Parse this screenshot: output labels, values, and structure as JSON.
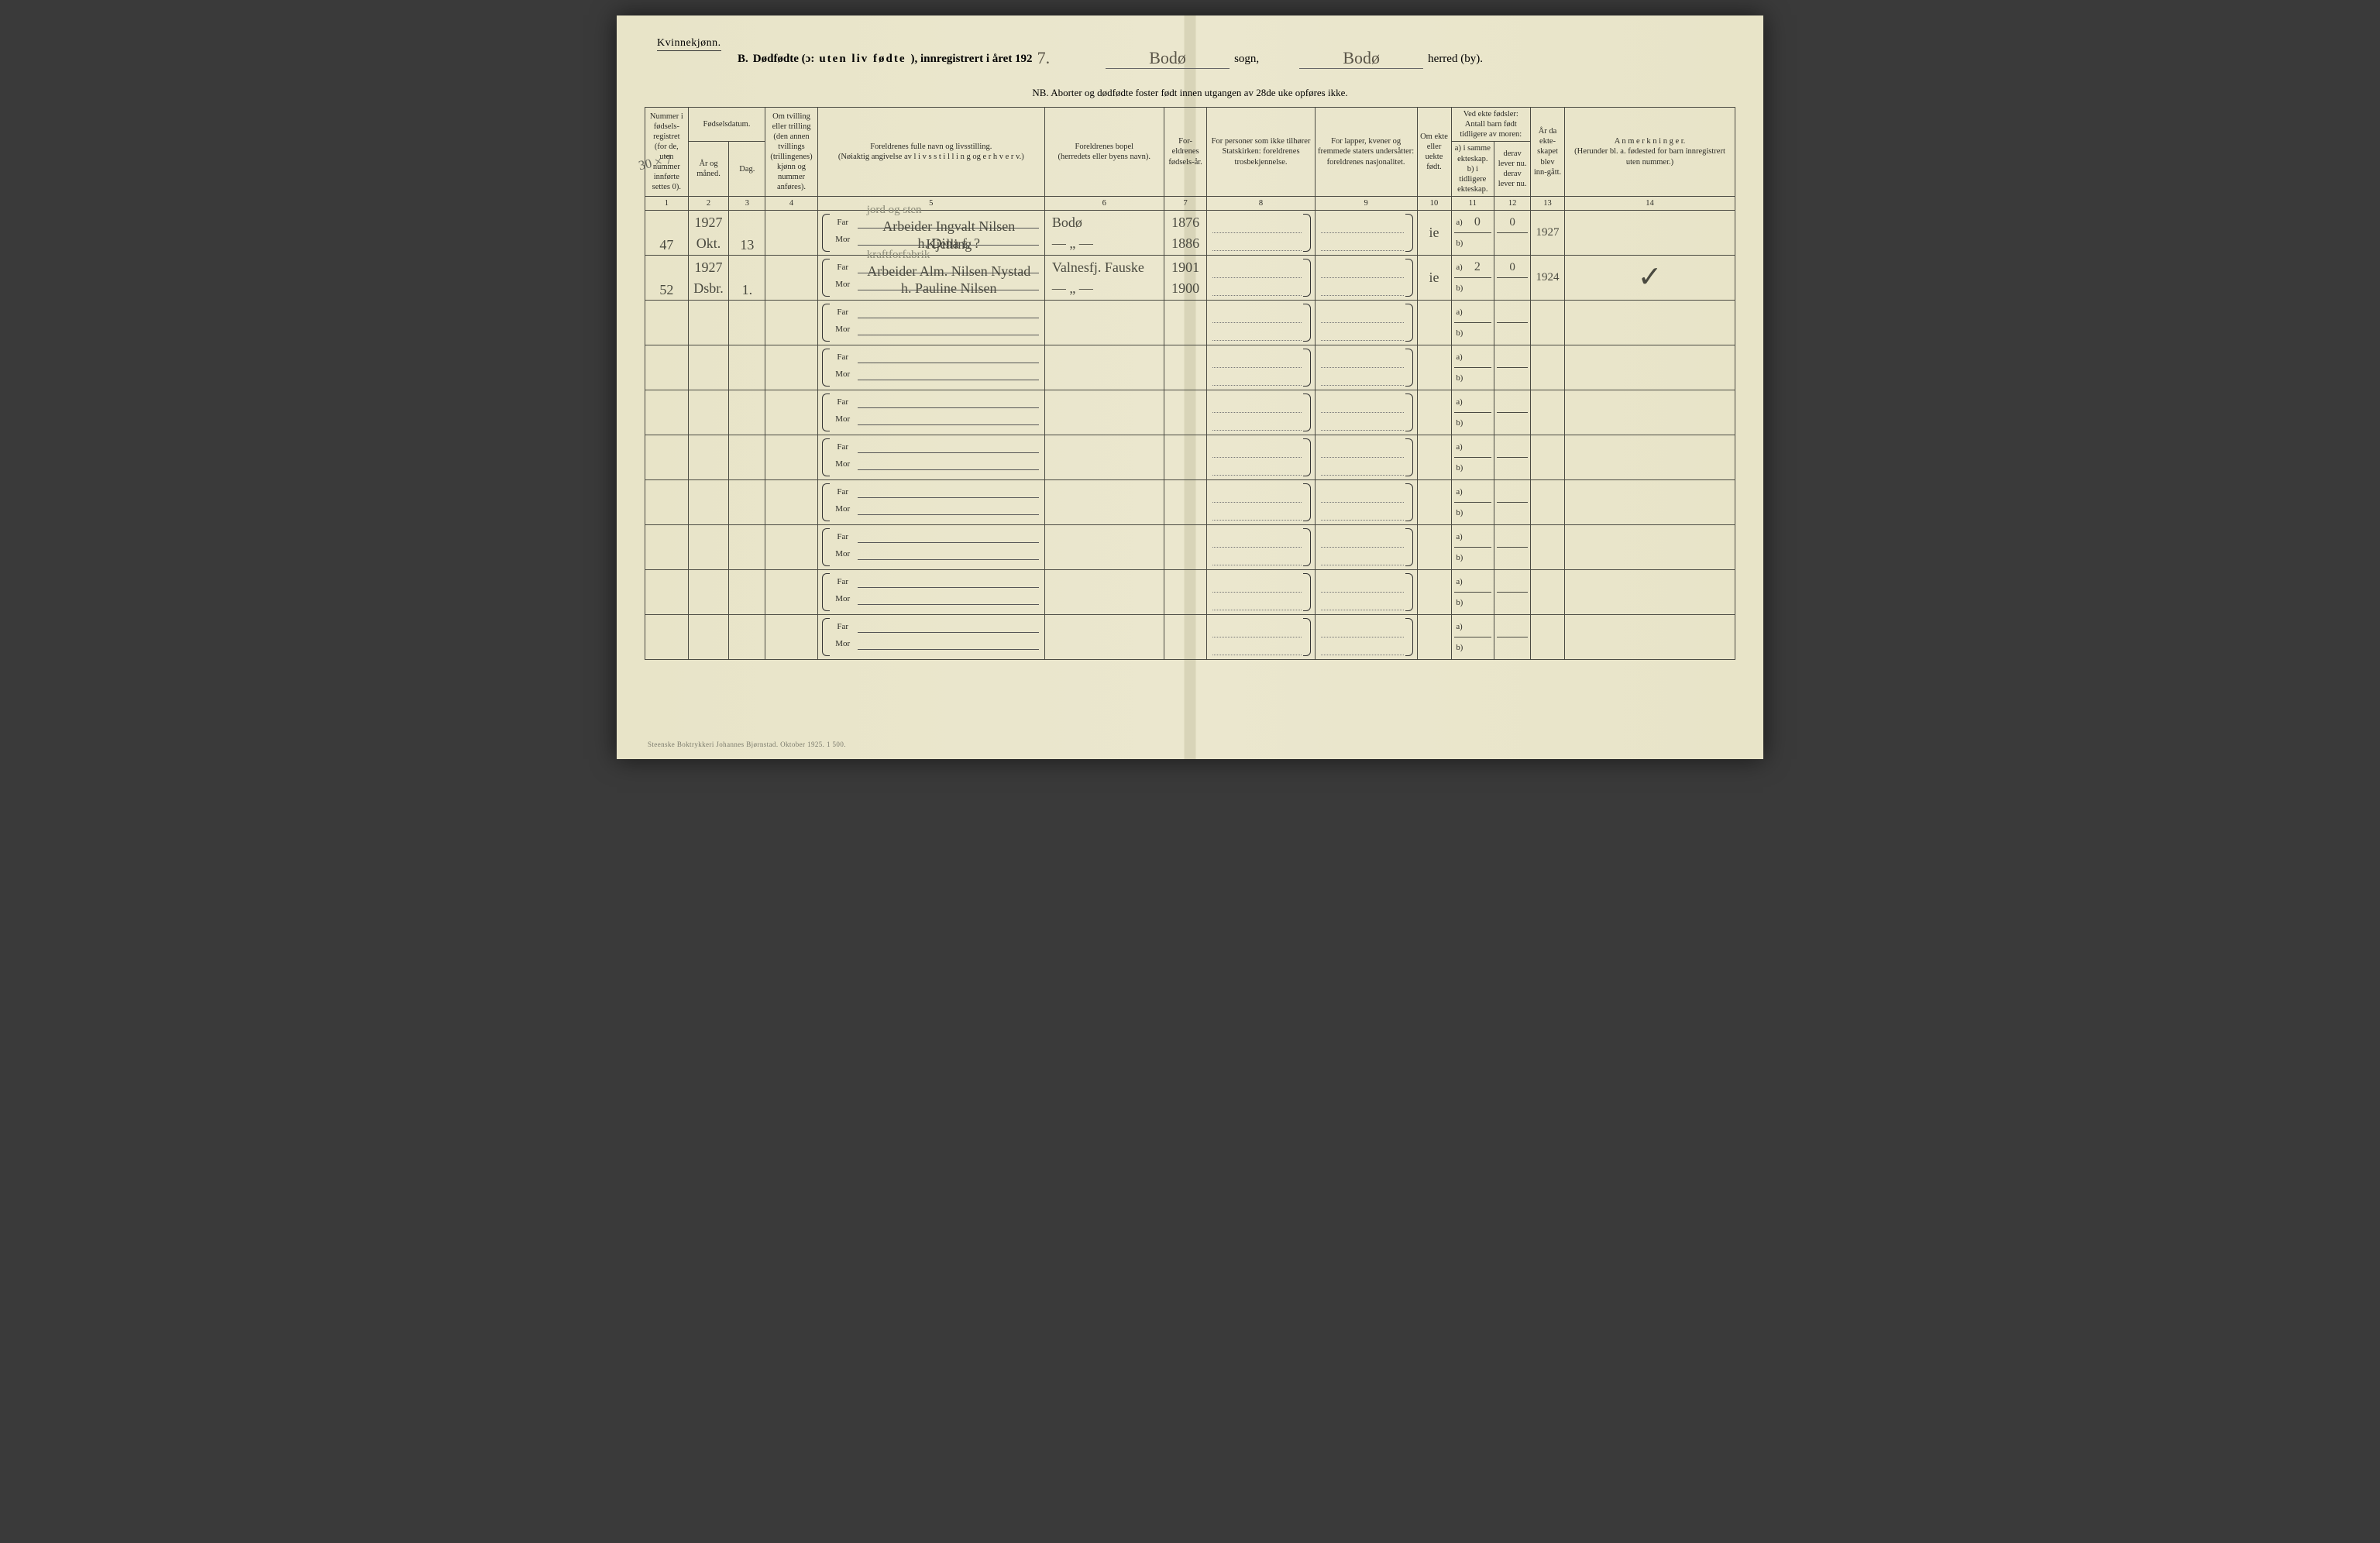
{
  "header": {
    "gender": "Kvinnekjønn.",
    "title_b": "B.",
    "title_main": "Dødfødte (ɔ:",
    "title_spaced": "uten liv fødte",
    "title_tail": "), innregistrert i året 192",
    "year_digit": "7.",
    "sogn_value": "Bodø",
    "sogn_label": "sogn,",
    "herred_value": "Bodø",
    "herred_label": "herred (by).",
    "nb": "NB.  Aborter og dødfødte foster født innen utgangen av 28de uke opføres ikke."
  },
  "columns": {
    "c1": "Nummer i fødsels-registret (for de, uten nummer innførte settes 0).",
    "c23_top": "Fødselsdatum.",
    "c2": "År og måned.",
    "c3": "Dag.",
    "c4": "Om tvilling eller trilling (den annen tvillings (trillingenes) kjønn og nummer anføres).",
    "c5": "Foreldrenes fulle navn og livsstilling.\n(Nøiaktig angivelse av l i v s s t i l l i n g  og e r h v e r v.)",
    "c6": "Foreldrenes bopel\n(herredets eller byens navn).",
    "c7": "For-eldrenes fødsels-år.",
    "c8": "For personer som ikke tilhører Statskirken: foreldrenes trosbekjennelse.",
    "c9": "For lapper, kvener og fremmede staters undersåtter: foreldrenes nasjonalitet.",
    "c10": "Om ekte eller uekte født.",
    "c11_top": "Ved ekte fødsler: Antall barn født tidligere av moren:",
    "c11a": "a) i samme ekteskap.",
    "c11b": "b) i tidligere ekteskap.",
    "c12_top": "derav lever nu.",
    "c12a": "derav lever nu.",
    "c13": "År da ekte-skapet blev inn-gått.",
    "c14": "A n m e r k n i n g e r.\n(Herunder bl. a. fødested for barn innregistrert uten nummer.)",
    "nums": [
      "1",
      "2",
      "3",
      "4",
      "5",
      "6",
      "7",
      "8",
      "9",
      "10",
      "11",
      "12",
      "13",
      "14"
    ]
  },
  "labels": {
    "far": "Far",
    "mor": "Mor",
    "a": "a)",
    "b": "b)"
  },
  "entries": [
    {
      "num": "47",
      "year": "1927",
      "month": "Okt.",
      "day": "13",
      "far_note": "jord og sten",
      "far": "Arbeider Ingvalt Nilsen Kjelling",
      "mor": "h. Dina f. ?",
      "bopel_far": "Bodø",
      "bopel_mor": "— „ —",
      "fy_far": "1876",
      "fy_mor": "1886",
      "ekte": "ie",
      "a_val": "0",
      "a_lever": "0",
      "aar": "1927"
    },
    {
      "num": "52",
      "year": "1927",
      "month": "Dsbr.",
      "day": "1.",
      "far_note": "kraftforfabrik",
      "far": "Arbeider Alm. Nilsen Nystad",
      "mor": "h. Pauline Nilsen",
      "bopel_far": "Valnesfj. Fauske",
      "bopel_mor": "— „ —",
      "fy_far": "1901",
      "fy_mor": "1900",
      "ekte": "ie",
      "a_val": "2",
      "a_lever": "0",
      "aar": "1924",
      "check": "✓"
    }
  ],
  "blank_rows": 8,
  "margin_note": "30 × 7",
  "imprint": "Steenske Boktrykkeri Johannes Bjørnstad.   Oktober 1925.   1 500."
}
